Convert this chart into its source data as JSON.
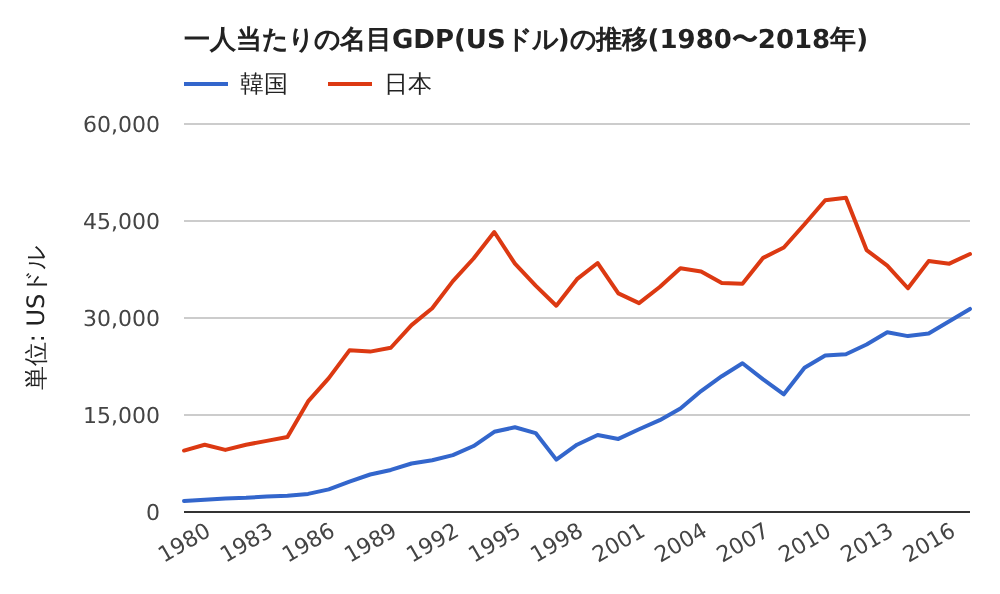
{
  "chart_data": {
    "type": "line",
    "title": "一人当たりの名目GDP(USドル)の推移(1980〜2018年)",
    "ylabel": "単位: USドル",
    "x": [
      1980,
      1981,
      1982,
      1983,
      1984,
      1985,
      1986,
      1987,
      1988,
      1989,
      1990,
      1991,
      1992,
      1993,
      1994,
      1995,
      1996,
      1997,
      1998,
      1999,
      2000,
      2001,
      2002,
      2003,
      2004,
      2005,
      2006,
      2007,
      2008,
      2009,
      2010,
      2011,
      2012,
      2013,
      2014,
      2015,
      2016,
      2017,
      2018
    ],
    "series": [
      {
        "name": "韓国",
        "color": "#3366cc",
        "values": [
          1700,
          1900,
          2100,
          2200,
          2400,
          2500,
          2800,
          3500,
          4700,
          5800,
          6500,
          7500,
          8000,
          8800,
          10200,
          12400,
          13100,
          12200,
          8100,
          10400,
          11900,
          11300,
          12800,
          14200,
          16000,
          18700,
          21000,
          23000,
          20500,
          18200,
          22300,
          24200,
          24400,
          25900,
          27800,
          27200,
          27600,
          29500,
          31400
        ]
      },
      {
        "name": "日本",
        "color": "#dc3912",
        "values": [
          9500,
          10400,
          9600,
          10400,
          11000,
          11600,
          17100,
          20700,
          25000,
          24800,
          25400,
          28900,
          31500,
          35700,
          39200,
          43300,
          38400,
          35000,
          31900,
          36000,
          38500,
          33800,
          32300,
          34800,
          37700,
          37200,
          35400,
          35300,
          39300,
          40900,
          44500,
          48200,
          48600,
          40500,
          38100,
          34600,
          38800,
          38400,
          39900
        ]
      }
    ],
    "xlim": [
      1980,
      2018
    ],
    "xticks": [
      1980,
      1983,
      1986,
      1989,
      1992,
      1995,
      1998,
      2001,
      2004,
      2007,
      2010,
      2013,
      2016
    ],
    "ylim": [
      0,
      60000
    ],
    "yticks": [
      0,
      {
        "value": 15000,
        "label": "15,000"
      },
      {
        "value": 30000,
        "label": "30,000"
      },
      {
        "value": 45000,
        "label": "45,000"
      },
      {
        "value": 60000,
        "label": "60,000"
      }
    ],
    "grid": "y",
    "legend": "top left",
    "line_style": "solid",
    "marker": "none"
  }
}
